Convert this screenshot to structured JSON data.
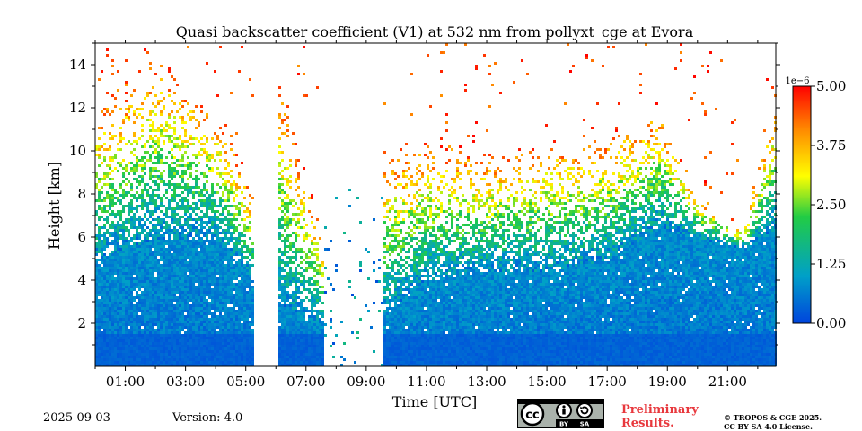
{
  "chart_data": {
    "type": "heatmap",
    "title": "Quasi backscatter coefficient (V1) at 532 nm from pollyxt_cge at Evora",
    "xlabel": "Time [UTC]",
    "ylabel": "Height [km]",
    "xlim": [
      0.0,
      22.6
    ],
    "ylim": [
      0.0,
      15.0
    ],
    "x_ticks": [
      "01:00",
      "03:00",
      "05:00",
      "07:00",
      "09:00",
      "11:00",
      "13:00",
      "15:00",
      "17:00",
      "19:00",
      "21:00"
    ],
    "x_tick_values": [
      1,
      3,
      5,
      7,
      9,
      11,
      13,
      15,
      17,
      19,
      21
    ],
    "y_ticks": [
      "2",
      "4",
      "6",
      "8",
      "10",
      "12",
      "14"
    ],
    "y_tick_values": [
      2,
      4,
      6,
      8,
      10,
      12,
      14
    ],
    "colorbar": {
      "exponent_label": "1e−6",
      "ticks": [
        "0.00",
        "1.25",
        "2.50",
        "3.75",
        "5.00"
      ],
      "tick_values": [
        0.0,
        1.25,
        2.5,
        3.75,
        5.0
      ],
      "range": [
        0.0,
        5.0
      ],
      "colormap": [
        "#0044dd",
        "#00a0c8",
        "#22cc44",
        "#ffff00",
        "#ff8800",
        "#ff0000"
      ]
    },
    "data_gaps_utc": [
      [
        5.25,
        6.0
      ],
      [
        7.55,
        9.55
      ]
    ],
    "sparse_intervals_utc": [
      [
        7.55,
        9.55
      ]
    ],
    "profiles": [
      {
        "t": 0.0,
        "dense_top_km": 5.0,
        "sparse_top_km": 12.0
      },
      {
        "t": 2.0,
        "dense_top_km": 6.0,
        "sparse_top_km": 14.5
      },
      {
        "t": 4.0,
        "dense_top_km": 6.0,
        "sparse_top_km": 12.0
      },
      {
        "t": 5.25,
        "dense_top_km": 4.0,
        "sparse_top_km": 8.0
      },
      {
        "t": 6.0,
        "dense_top_km": 3.0,
        "sparse_top_km": 14.0
      },
      {
        "t": 7.55,
        "dense_top_km": 2.0,
        "sparse_top_km": 6.0
      },
      {
        "t": 9.55,
        "dense_top_km": 2.5,
        "sparse_top_km": 10.0
      },
      {
        "t": 11.0,
        "dense_top_km": 4.0,
        "sparse_top_km": 10.5
      },
      {
        "t": 13.0,
        "dense_top_km": 4.5,
        "sparse_top_km": 10.0
      },
      {
        "t": 15.0,
        "dense_top_km": 4.5,
        "sparse_top_km": 10.5
      },
      {
        "t": 17.0,
        "dense_top_km": 5.0,
        "sparse_top_km": 11.0
      },
      {
        "t": 18.7,
        "dense_top_km": 6.5,
        "sparse_top_km": 12.0
      },
      {
        "t": 20.0,
        "dense_top_km": 6.0,
        "sparse_top_km": 8.0
      },
      {
        "t": 21.5,
        "dense_top_km": 5.5,
        "sparse_top_km": 6.5
      },
      {
        "t": 22.6,
        "dense_top_km": 6.5,
        "sparse_top_km": 13.0
      }
    ]
  },
  "footer": {
    "date": "2025-09-03",
    "version": "Version: 4.0",
    "license_badge": {
      "cc": "cc",
      "by": "BY",
      "sa": "SA"
    },
    "preliminary_line1": "Preliminary",
    "preliminary_line2": "Results.",
    "copyright_line1": "© TROPOS & CGE 2025.",
    "copyright_line2": "CC BY SA 4.0 License."
  }
}
